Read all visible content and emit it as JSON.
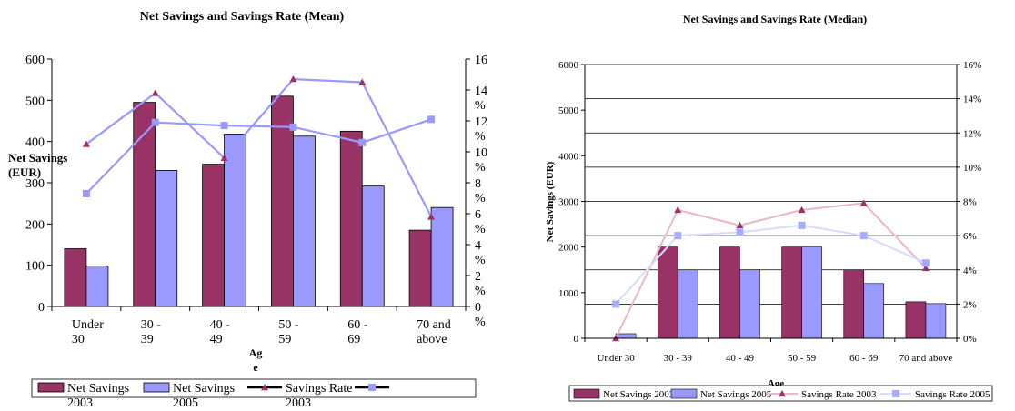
{
  "chart_data": [
    {
      "type": "bar",
      "title": "Net Savings and Savings Rate (Mean)",
      "xlabel": "Ag\ne",
      "ylabel": "Net Savings\n(EUR)",
      "ylim": [
        0,
        600
      ],
      "y_ticks": [
        "0",
        "100",
        "200",
        "300",
        "400",
        "500",
        "600"
      ],
      "y2_ticks": [
        "0\n%",
        "2\n%",
        "4\n%",
        "6\n%",
        "8\n%",
        "10\n%",
        "12\n%",
        "14\n%",
        "16"
      ],
      "y2lim": [
        0,
        16
      ],
      "categories": [
        "Under\n30",
        "30 -\n39",
        "40 -\n49",
        "50 -\n59",
        "60 -\n69",
        "70 and\nabove"
      ],
      "series": [
        {
          "name": "Net Savings\n2003",
          "kind": "bar",
          "color": "#993366",
          "values": [
            140,
            495,
            345,
            510,
            425,
            185
          ]
        },
        {
          "name": "Net Savings\n2005",
          "kind": "bar",
          "color": "#9999ff",
          "values": [
            98,
            330,
            418,
            413,
            292,
            240
          ]
        },
        {
          "name": "Savings Rate\n2003",
          "kind": "line",
          "axis": "right",
          "color": "#9999ff",
          "marker": "triangle",
          "marker_color": "#993366",
          "values": [
            10.5,
            13.8,
            9.6,
            14.7,
            14.5,
            5.8
          ]
        },
        {
          "name": "",
          "kind": "line",
          "axis": "right",
          "color": "#9999ff",
          "marker": "square",
          "marker_color": "#9999ff",
          "values": [
            7.3,
            11.9,
            11.7,
            11.6,
            10.6,
            12.1
          ]
        }
      ],
      "grid": false,
      "legend": "bottom"
    },
    {
      "type": "bar",
      "title": "Net Savings and Savings Rate (Median)",
      "xlabel": "Age",
      "ylabel": "Net Savings (EUR)",
      "ylim": [
        0,
        6000
      ],
      "y_ticks": [
        "0",
        "1000",
        "2000",
        "3000",
        "4000",
        "5000",
        "6000"
      ],
      "y2_ticks": [
        "0%",
        "2%",
        "4%",
        "6%",
        "8%",
        "10%",
        "12%",
        "14%",
        "16%"
      ],
      "y2lim": [
        0,
        16
      ],
      "categories": [
        "Under 30",
        "30 - 39",
        "40 - 49",
        "50 - 59",
        "60 - 69",
        "70 and above"
      ],
      "series": [
        {
          "name": "Net Savings 2003",
          "kind": "bar",
          "color": "#993366",
          "values": [
            0,
            2000,
            2000,
            2000,
            1500,
            800
          ]
        },
        {
          "name": "Net Savings 2005",
          "kind": "bar",
          "color": "#9999ff",
          "values": [
            100,
            1500,
            1500,
            2000,
            1200,
            760
          ]
        },
        {
          "name": "Savings Rate 2003",
          "kind": "line",
          "axis": "right",
          "color": "#e8b8c6",
          "marker": "triangle",
          "marker_color": "#993366",
          "values": [
            0,
            7.5,
            6.6,
            7.5,
            7.9,
            4.1
          ]
        },
        {
          "name": "Savings Rate 2005",
          "kind": "line",
          "axis": "right",
          "color": "#d8dcfa",
          "marker": "square",
          "marker_color": "#a8acff",
          "values": [
            2.0,
            6.0,
            6.2,
            6.6,
            6.0,
            4.4
          ]
        }
      ],
      "grid": true,
      "legend": "bottom"
    }
  ]
}
